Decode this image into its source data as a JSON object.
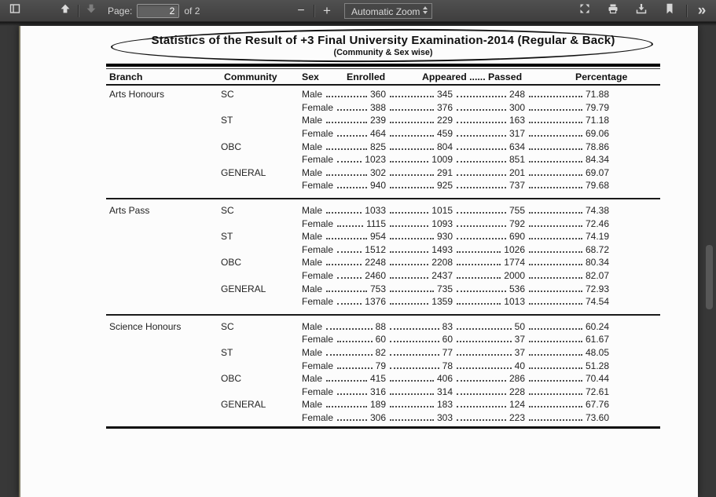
{
  "toolbar": {
    "page_label": "Page:",
    "page_value": "2",
    "page_total_label": "of 2",
    "zoom_label": "Automatic Zoom",
    "glyphs": {
      "zoom_out": "−",
      "zoom_in": "+",
      "tools": "»"
    },
    "icons": [
      "sidebar-toggle-icon",
      "page-up-icon",
      "page-down-icon",
      "zoom-out-icon",
      "zoom-in-icon",
      "presentation-mode-icon",
      "print-icon",
      "download-icon",
      "bookmark-icon",
      "tools-chevron-icon"
    ]
  },
  "doc": {
    "title": "Statistics of the Result of +3 Final University Examination-2014 (Regular & Back)",
    "subtitle": "(Community & Sex wise)",
    "headers": {
      "branch": "Branch",
      "community": "Community",
      "sex": "Sex",
      "enrolled": "Enrolled",
      "appeared_passed": "Appeared ...... Passed",
      "percentage": "Percentage"
    },
    "sections": [
      {
        "branch": "Arts Honours",
        "groups": [
          {
            "community": "SC",
            "rows": [
              {
                "sex": "Male",
                "enrolled": "360",
                "appeared": "345",
                "passed": "248",
                "percentage": "71.88"
              },
              {
                "sex": "Female",
                "enrolled": "388",
                "appeared": "376",
                "passed": "300",
                "percentage": "79.79"
              }
            ]
          },
          {
            "community": "ST",
            "rows": [
              {
                "sex": "Male",
                "enrolled": "239",
                "appeared": "229",
                "passed": "163",
                "percentage": "71.18"
              },
              {
                "sex": "Female",
                "enrolled": "464",
                "appeared": "459",
                "passed": "317",
                "percentage": "69.06"
              }
            ]
          },
          {
            "community": "OBC",
            "rows": [
              {
                "sex": "Male",
                "enrolled": "825",
                "appeared": "804",
                "passed": "634",
                "percentage": "78.86"
              },
              {
                "sex": "Female",
                "enrolled": "1023",
                "appeared": "1009",
                "passed": "851",
                "percentage": "84.34"
              }
            ]
          },
          {
            "community": "GENERAL",
            "rows": [
              {
                "sex": "Male",
                "enrolled": "302",
                "appeared": "291",
                "passed": "201",
                "percentage": "69.07"
              },
              {
                "sex": "Female",
                "enrolled": "940",
                "appeared": "925",
                "passed": "737",
                "percentage": "79.68"
              }
            ]
          }
        ]
      },
      {
        "branch": "Arts Pass",
        "groups": [
          {
            "community": "SC",
            "rows": [
              {
                "sex": "Male",
                "enrolled": "1033",
                "appeared": "1015",
                "passed": "755",
                "percentage": "74.38"
              },
              {
                "sex": "Female",
                "enrolled": "1115",
                "appeared": "1093",
                "passed": "792",
                "percentage": "72.46"
              }
            ]
          },
          {
            "community": "ST",
            "rows": [
              {
                "sex": "Male",
                "enrolled": "954",
                "appeared": "930",
                "passed": "690",
                "percentage": "74.19"
              },
              {
                "sex": "Female",
                "enrolled": "1512",
                "appeared": "1493",
                "passed": "1026",
                "percentage": "68.72"
              }
            ]
          },
          {
            "community": "OBC",
            "rows": [
              {
                "sex": "Male",
                "enrolled": "2248",
                "appeared": "2208",
                "passed": "1774",
                "percentage": "80.34"
              },
              {
                "sex": "Female",
                "enrolled": "2460",
                "appeared": "2437",
                "passed": "2000",
                "percentage": "82.07"
              }
            ]
          },
          {
            "community": "GENERAL",
            "rows": [
              {
                "sex": "Male",
                "enrolled": "753",
                "appeared": "735",
                "passed": "536",
                "percentage": "72.93"
              },
              {
                "sex": "Female",
                "enrolled": "1376",
                "appeared": "1359",
                "passed": "1013",
                "percentage": "74.54"
              }
            ]
          }
        ]
      },
      {
        "branch": "Science Honours",
        "groups": [
          {
            "community": "SC",
            "rows": [
              {
                "sex": "Male",
                "enrolled": "88",
                "appeared": "83",
                "passed": "50",
                "percentage": "60.24"
              },
              {
                "sex": "Female",
                "enrolled": "60",
                "appeared": "60",
                "passed": "37",
                "percentage": "61.67"
              }
            ]
          },
          {
            "community": "ST",
            "rows": [
              {
                "sex": "Male",
                "enrolled": "82",
                "appeared": "77",
                "passed": "37",
                "percentage": "48.05"
              },
              {
                "sex": "Female",
                "enrolled": "79",
                "appeared": "78",
                "passed": "40",
                "percentage": "51.28"
              }
            ]
          },
          {
            "community": "OBC",
            "rows": [
              {
                "sex": "Male",
                "enrolled": "415",
                "appeared": "406",
                "passed": "286",
                "percentage": "70.44"
              },
              {
                "sex": "Female",
                "enrolled": "316",
                "appeared": "314",
                "passed": "228",
                "percentage": "72.61"
              }
            ]
          },
          {
            "community": "GENERAL",
            "rows": [
              {
                "sex": "Male",
                "enrolled": "189",
                "appeared": "183",
                "passed": "124",
                "percentage": "67.76"
              },
              {
                "sex": "Female",
                "enrolled": "306",
                "appeared": "303",
                "passed": "223",
                "percentage": "73.60"
              }
            ]
          }
        ]
      }
    ]
  },
  "colors": {
    "toolbar_bg": "#474747",
    "viewer_bg": "#383838",
    "page_bg": "#fcfcfc",
    "icon": "#d6d6d6",
    "icon_disabled": "#7d7d7d",
    "ink": "#1f1f1f"
  }
}
